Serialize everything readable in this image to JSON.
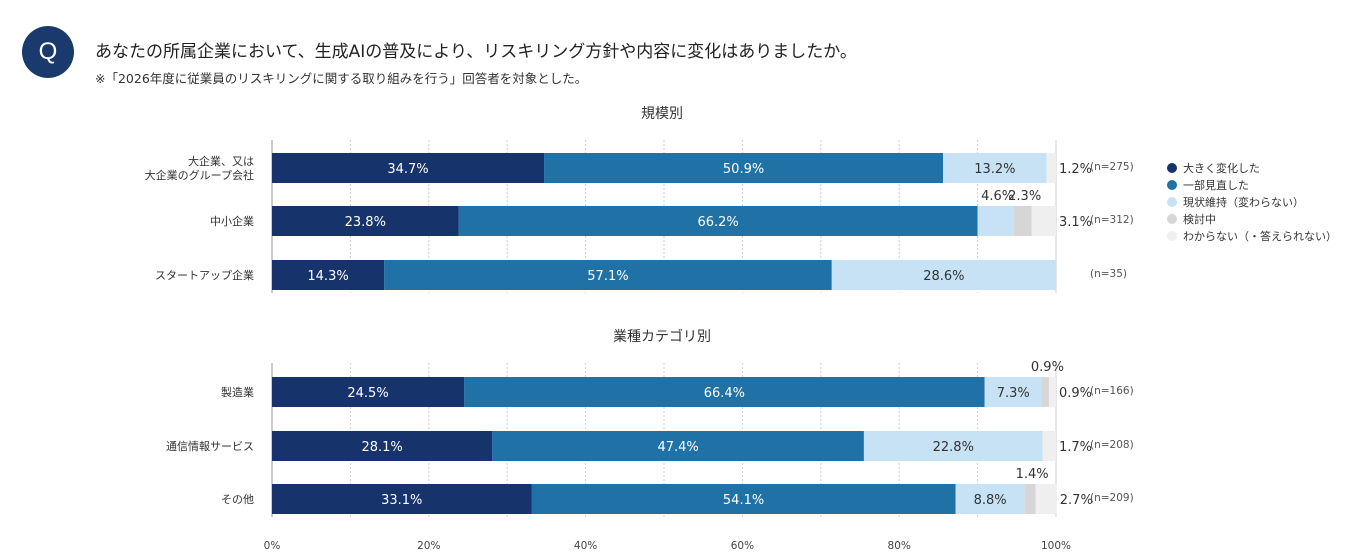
{
  "header": {
    "q_label": "Q",
    "question": "あなたの所属企業において、生成AIの普及により、リスキリング方針や内容に変化はありましたか。",
    "note": "※「2026年度に従業員のリスキリングに関する取り組みを行う」回答者を対象とした。"
  },
  "colors": {
    "series": [
      "#16336b",
      "#1f71a6",
      "#c7e2f5",
      "#d6d6d6",
      "#efefef"
    ],
    "grid": "#cfcfcf"
  },
  "chart_data": [
    {
      "type": "bar",
      "orientation": "horizontal",
      "stacked": true,
      "title": "規模別",
      "categories": [
        "大企業、又は\n大企業のグループ会社",
        "中小企業",
        "スタートアップ企業"
      ],
      "n_labels": [
        "(n=275)",
        "(n=312)",
        "(n=35)"
      ],
      "series": [
        {
          "name": "大きく変化した",
          "values": [
            34.7,
            23.8,
            14.3
          ]
        },
        {
          "name": "一部見直した",
          "values": [
            50.9,
            66.2,
            57.1
          ]
        },
        {
          "name": "現状維持（変わらない）",
          "values": [
            13.2,
            4.6,
            28.6
          ]
        },
        {
          "name": "検討中",
          "values": [
            0,
            2.3,
            0
          ]
        },
        {
          "name": "わからない（・答えられない）",
          "values": [
            1.2,
            3.1,
            0
          ]
        }
      ],
      "xlim": [
        0,
        100
      ],
      "legend": "right"
    },
    {
      "type": "bar",
      "orientation": "horizontal",
      "stacked": true,
      "title": "業種カテゴリ別",
      "categories": [
        "製造業",
        "通信情報サービス",
        "その他"
      ],
      "n_labels": [
        "(n=166)",
        "(n=208)",
        "(n=209)"
      ],
      "series": [
        {
          "name": "大きく変化した",
          "values": [
            24.5,
            28.1,
            33.1
          ]
        },
        {
          "name": "一部見直した",
          "values": [
            66.4,
            47.4,
            54.1
          ]
        },
        {
          "name": "現状維持（変わらない）",
          "values": [
            7.3,
            22.8,
            8.8
          ]
        },
        {
          "name": "検討中",
          "values": [
            0.9,
            0,
            1.4
          ]
        },
        {
          "name": "わからない（・答えられない）",
          "values": [
            0.9,
            1.7,
            2.7
          ]
        }
      ],
      "xlim": [
        0,
        100
      ],
      "x_ticks": [
        "0%",
        "20%",
        "40%",
        "60%",
        "80%",
        "100%"
      ]
    }
  ]
}
